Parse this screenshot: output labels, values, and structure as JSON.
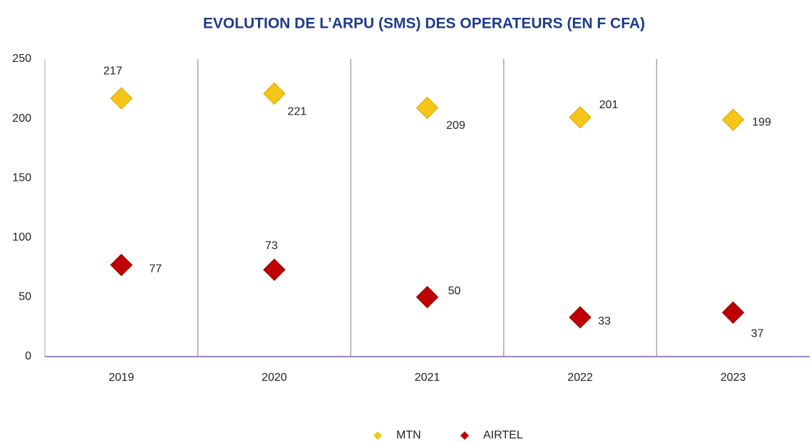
{
  "chart_data": {
    "type": "scatter",
    "title": "EVOLUTION DE L’ARPU (SMS) DES OPERATEURS (EN F CFA)",
    "categories": [
      "2019",
      "2020",
      "2021",
      "2022",
      "2023"
    ],
    "series": [
      {
        "name": "MTN",
        "color": "#f5c518",
        "values": [
          217,
          221,
          209,
          201,
          199
        ]
      },
      {
        "name": "AIRTEL",
        "color": "#c00000",
        "values": [
          77,
          73,
          50,
          33,
          37
        ]
      }
    ],
    "ylim": [
      0,
      250
    ],
    "yticks": [
      0,
      50,
      100,
      150,
      200,
      250
    ],
    "legend": "bottom"
  }
}
